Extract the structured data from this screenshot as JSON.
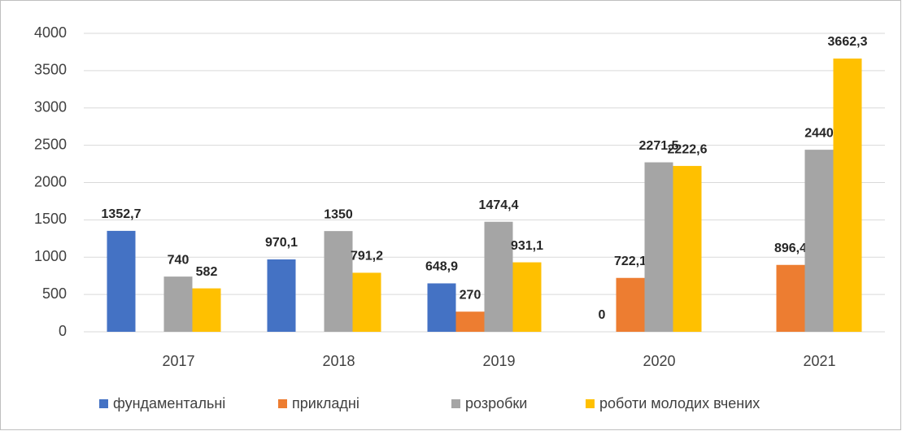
{
  "chart_data": {
    "type": "bar",
    "categories": [
      "2017",
      "2018",
      "2019",
      "2020",
      "2021"
    ],
    "series": [
      {
        "name": "фундаментальні",
        "color": "#4472c4",
        "values": [
          1352.7,
          970.1,
          648.9,
          0,
          null
        ],
        "value_labels": [
          "1352,7",
          "970,1",
          "648,9",
          "0",
          null
        ]
      },
      {
        "name": "прикладні",
        "color": "#ed7d31",
        "values": [
          null,
          null,
          270,
          722.1,
          896.4
        ],
        "value_labels": [
          null,
          null,
          "270",
          "722,1",
          "896,4"
        ]
      },
      {
        "name": "розробки",
        "color": "#a5a5a5",
        "values": [
          740,
          1350,
          1474.4,
          2271.5,
          2440
        ],
        "value_labels": [
          "740",
          "1350",
          "1474,4",
          "2271,5",
          "2440"
        ]
      },
      {
        "name": "роботи молодих вчених",
        "color": "#ffc000",
        "values": [
          582,
          791.2,
          931.1,
          2222.6,
          3662.3
        ],
        "value_labels": [
          "582",
          "791,2",
          "931,1",
          "2222,6",
          "3662,3"
        ]
      }
    ],
    "ylim": [
      0,
      4000
    ],
    "yticks": [
      0,
      500,
      1000,
      1500,
      2000,
      2500,
      3000,
      3500,
      4000
    ],
    "grid": true,
    "legend": "bottom"
  }
}
